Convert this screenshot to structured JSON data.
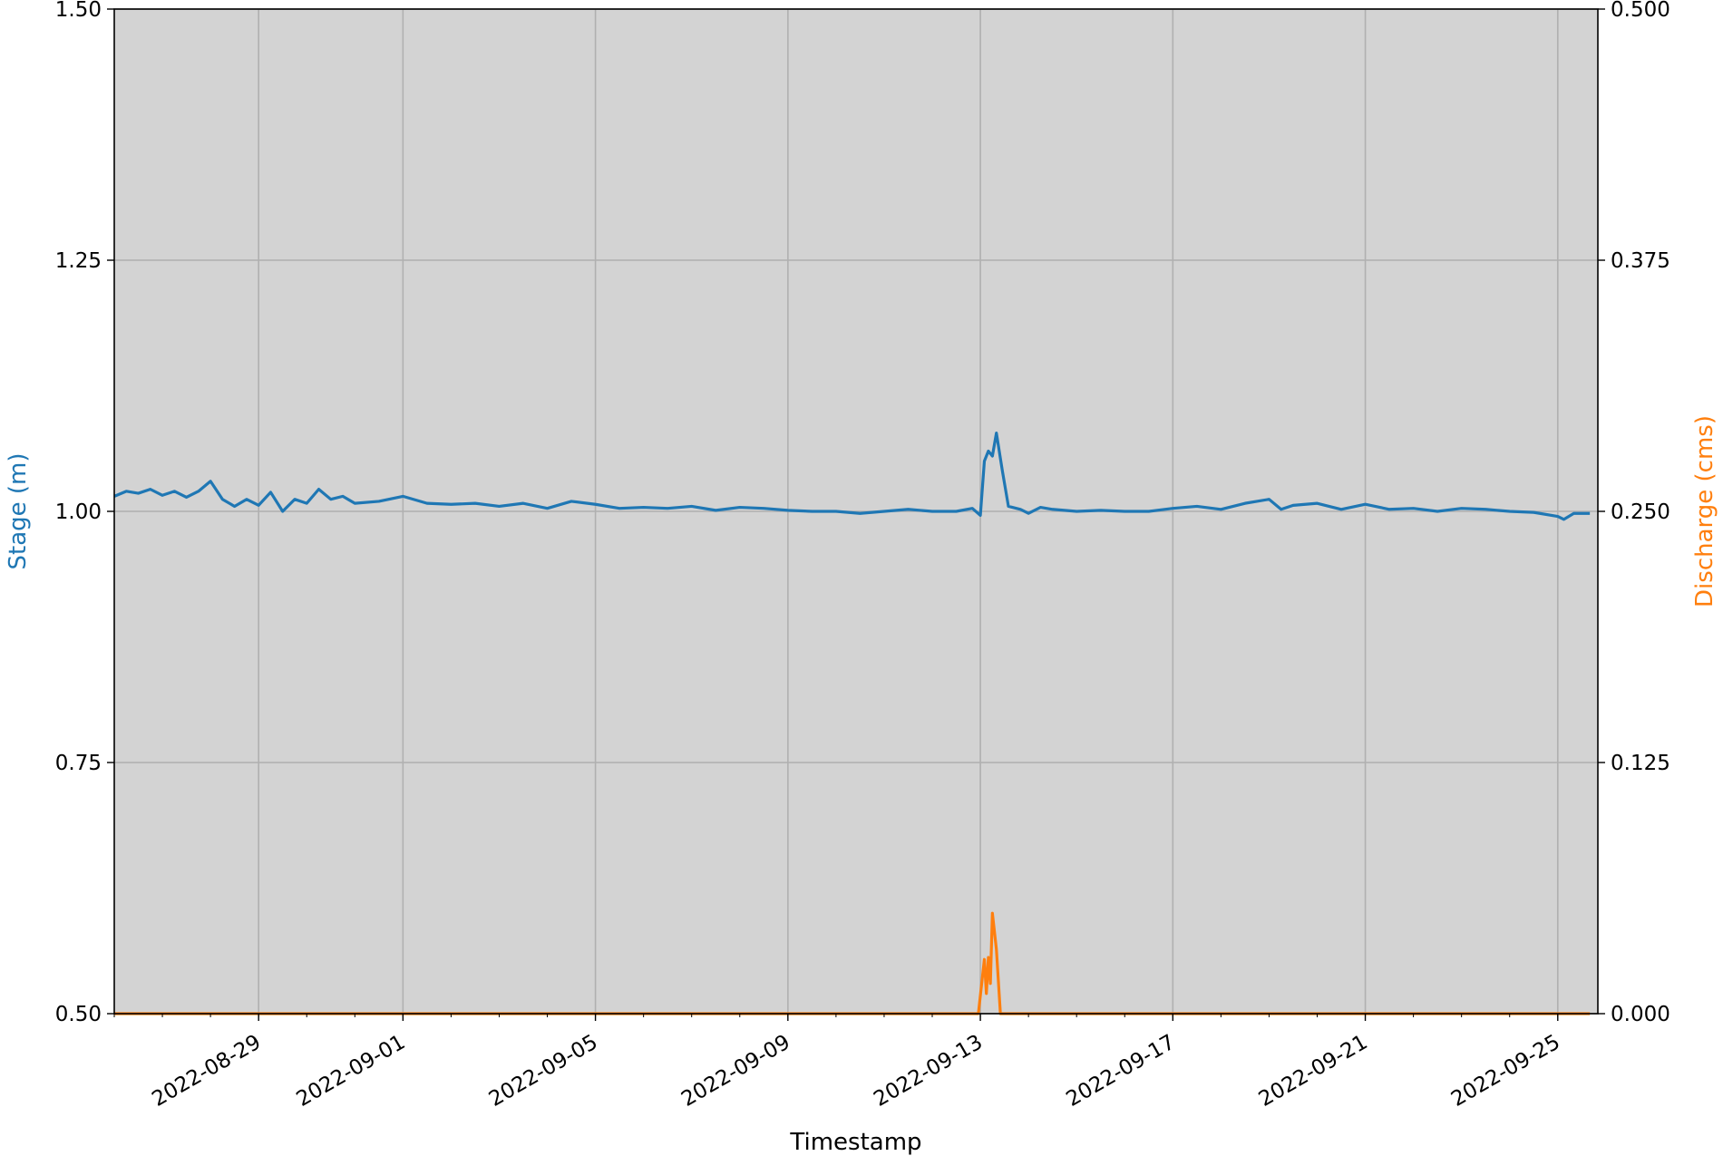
{
  "chart_data": {
    "type": "line",
    "title": "",
    "xlabel": "Timestamp",
    "ylabel_left": "Stage (m)",
    "ylabel_right": "Discharge (cms)",
    "xlim": [
      "2022-08-26T00:00",
      "2022-09-25T20:00"
    ],
    "ylim_left": [
      0.5,
      1.5
    ],
    "ylim_right": [
      0.0,
      0.5
    ],
    "x_ticks": [
      "2022-08-29",
      "2022-09-01",
      "2022-09-05",
      "2022-09-09",
      "2022-09-13",
      "2022-09-17",
      "2022-09-21",
      "2022-09-25"
    ],
    "y_ticks_left": [
      "0.50",
      "0.75",
      "1.00",
      "1.25",
      "1.50"
    ],
    "y_ticks_right": [
      "0.000",
      "0.125",
      "0.250",
      "0.375",
      "0.500"
    ],
    "grid": true,
    "background": "#d3d3d3",
    "colors": {
      "stage": "#1f77b4",
      "discharge": "#ff7f0e"
    },
    "series": [
      {
        "axis": "left",
        "points": [
          [
            "2022-08-26T00:00",
            1.015
          ],
          [
            "2022-08-26T06:00",
            1.02
          ],
          [
            "2022-08-26T12:00",
            1.018
          ],
          [
            "2022-08-26T18:00",
            1.022
          ],
          [
            "2022-08-27T00:00",
            1.016
          ],
          [
            "2022-08-27T06:00",
            1.02
          ],
          [
            "2022-08-27T12:00",
            1.014
          ],
          [
            "2022-08-27T18:00",
            1.02
          ],
          [
            "2022-08-28T00:00",
            1.03
          ],
          [
            "2022-08-28T06:00",
            1.012
          ],
          [
            "2022-08-28T12:00",
            1.005
          ],
          [
            "2022-08-28T18:00",
            1.012
          ],
          [
            "2022-08-29T00:00",
            1.006
          ],
          [
            "2022-08-29T06:00",
            1.019
          ],
          [
            "2022-08-29T12:00",
            1.0
          ],
          [
            "2022-08-29T18:00",
            1.012
          ],
          [
            "2022-08-30T00:00",
            1.008
          ],
          [
            "2022-08-30T06:00",
            1.022
          ],
          [
            "2022-08-30T12:00",
            1.012
          ],
          [
            "2022-08-30T18:00",
            1.015
          ],
          [
            "2022-08-31T00:00",
            1.008
          ],
          [
            "2022-08-31T12:00",
            1.01
          ],
          [
            "2022-09-01T00:00",
            1.015
          ],
          [
            "2022-09-01T12:00",
            1.008
          ],
          [
            "2022-09-02T00:00",
            1.007
          ],
          [
            "2022-09-02T12:00",
            1.008
          ],
          [
            "2022-09-03T00:00",
            1.005
          ],
          [
            "2022-09-03T12:00",
            1.008
          ],
          [
            "2022-09-04T00:00",
            1.003
          ],
          [
            "2022-09-04T12:00",
            1.01
          ],
          [
            "2022-09-05T00:00",
            1.007
          ],
          [
            "2022-09-05T12:00",
            1.003
          ],
          [
            "2022-09-06T00:00",
            1.004
          ],
          [
            "2022-09-06T12:00",
            1.003
          ],
          [
            "2022-09-07T00:00",
            1.005
          ],
          [
            "2022-09-07T12:00",
            1.001
          ],
          [
            "2022-09-08T00:00",
            1.004
          ],
          [
            "2022-09-08T12:00",
            1.003
          ],
          [
            "2022-09-09T00:00",
            1.001
          ],
          [
            "2022-09-09T12:00",
            1.0
          ],
          [
            "2022-09-10T00:00",
            1.0
          ],
          [
            "2022-09-10T12:00",
            0.998
          ],
          [
            "2022-09-11T00:00",
            1.0
          ],
          [
            "2022-09-11T12:00",
            1.002
          ],
          [
            "2022-09-12T00:00",
            1.0
          ],
          [
            "2022-09-12T12:00",
            1.0
          ],
          [
            "2022-09-12T20:00",
            1.003
          ],
          [
            "2022-09-13T00:00",
            0.996
          ],
          [
            "2022-09-13T02:00",
            1.05
          ],
          [
            "2022-09-13T04:00",
            1.06
          ],
          [
            "2022-09-13T06:00",
            1.055
          ],
          [
            "2022-09-13T08:00",
            1.078
          ],
          [
            "2022-09-13T11:00",
            1.04
          ],
          [
            "2022-09-13T14:00",
            1.005
          ],
          [
            "2022-09-13T20:00",
            1.002
          ],
          [
            "2022-09-14T00:00",
            0.998
          ],
          [
            "2022-09-14T06:00",
            1.004
          ],
          [
            "2022-09-14T12:00",
            1.002
          ],
          [
            "2022-09-15T00:00",
            1.0
          ],
          [
            "2022-09-15T12:00",
            1.001
          ],
          [
            "2022-09-16T00:00",
            1.0
          ],
          [
            "2022-09-16T12:00",
            1.0
          ],
          [
            "2022-09-17T00:00",
            1.003
          ],
          [
            "2022-09-17T12:00",
            1.005
          ],
          [
            "2022-09-18T00:00",
            1.002
          ],
          [
            "2022-09-18T12:00",
            1.008
          ],
          [
            "2022-09-19T00:00",
            1.012
          ],
          [
            "2022-09-19T06:00",
            1.002
          ],
          [
            "2022-09-19T12:00",
            1.006
          ],
          [
            "2022-09-20T00:00",
            1.008
          ],
          [
            "2022-09-20T12:00",
            1.002
          ],
          [
            "2022-09-21T00:00",
            1.007
          ],
          [
            "2022-09-21T12:00",
            1.002
          ],
          [
            "2022-09-22T00:00",
            1.003
          ],
          [
            "2022-09-22T12:00",
            1.0
          ],
          [
            "2022-09-23T00:00",
            1.003
          ],
          [
            "2022-09-23T12:00",
            1.002
          ],
          [
            "2022-09-24T00:00",
            1.0
          ],
          [
            "2022-09-24T12:00",
            0.999
          ],
          [
            "2022-09-25T00:00",
            0.995
          ],
          [
            "2022-09-25T03:00",
            0.992
          ],
          [
            "2022-09-25T08:00",
            0.998
          ],
          [
            "2022-09-25T16:00",
            0.998
          ]
        ]
      },
      {
        "axis": "right",
        "points": [
          [
            "2022-08-26T00:00",
            0.0
          ],
          [
            "2022-09-12T23:00",
            0.0
          ],
          [
            "2022-09-13T02:00",
            0.027
          ],
          [
            "2022-09-13T03:00",
            0.01
          ],
          [
            "2022-09-13T04:00",
            0.028
          ],
          [
            "2022-09-13T05:00",
            0.015
          ],
          [
            "2022-09-13T06:00",
            0.05
          ],
          [
            "2022-09-13T08:00",
            0.032
          ],
          [
            "2022-09-13T10:00",
            0.0
          ],
          [
            "2022-09-25T16:00",
            0.0
          ]
        ]
      }
    ]
  }
}
